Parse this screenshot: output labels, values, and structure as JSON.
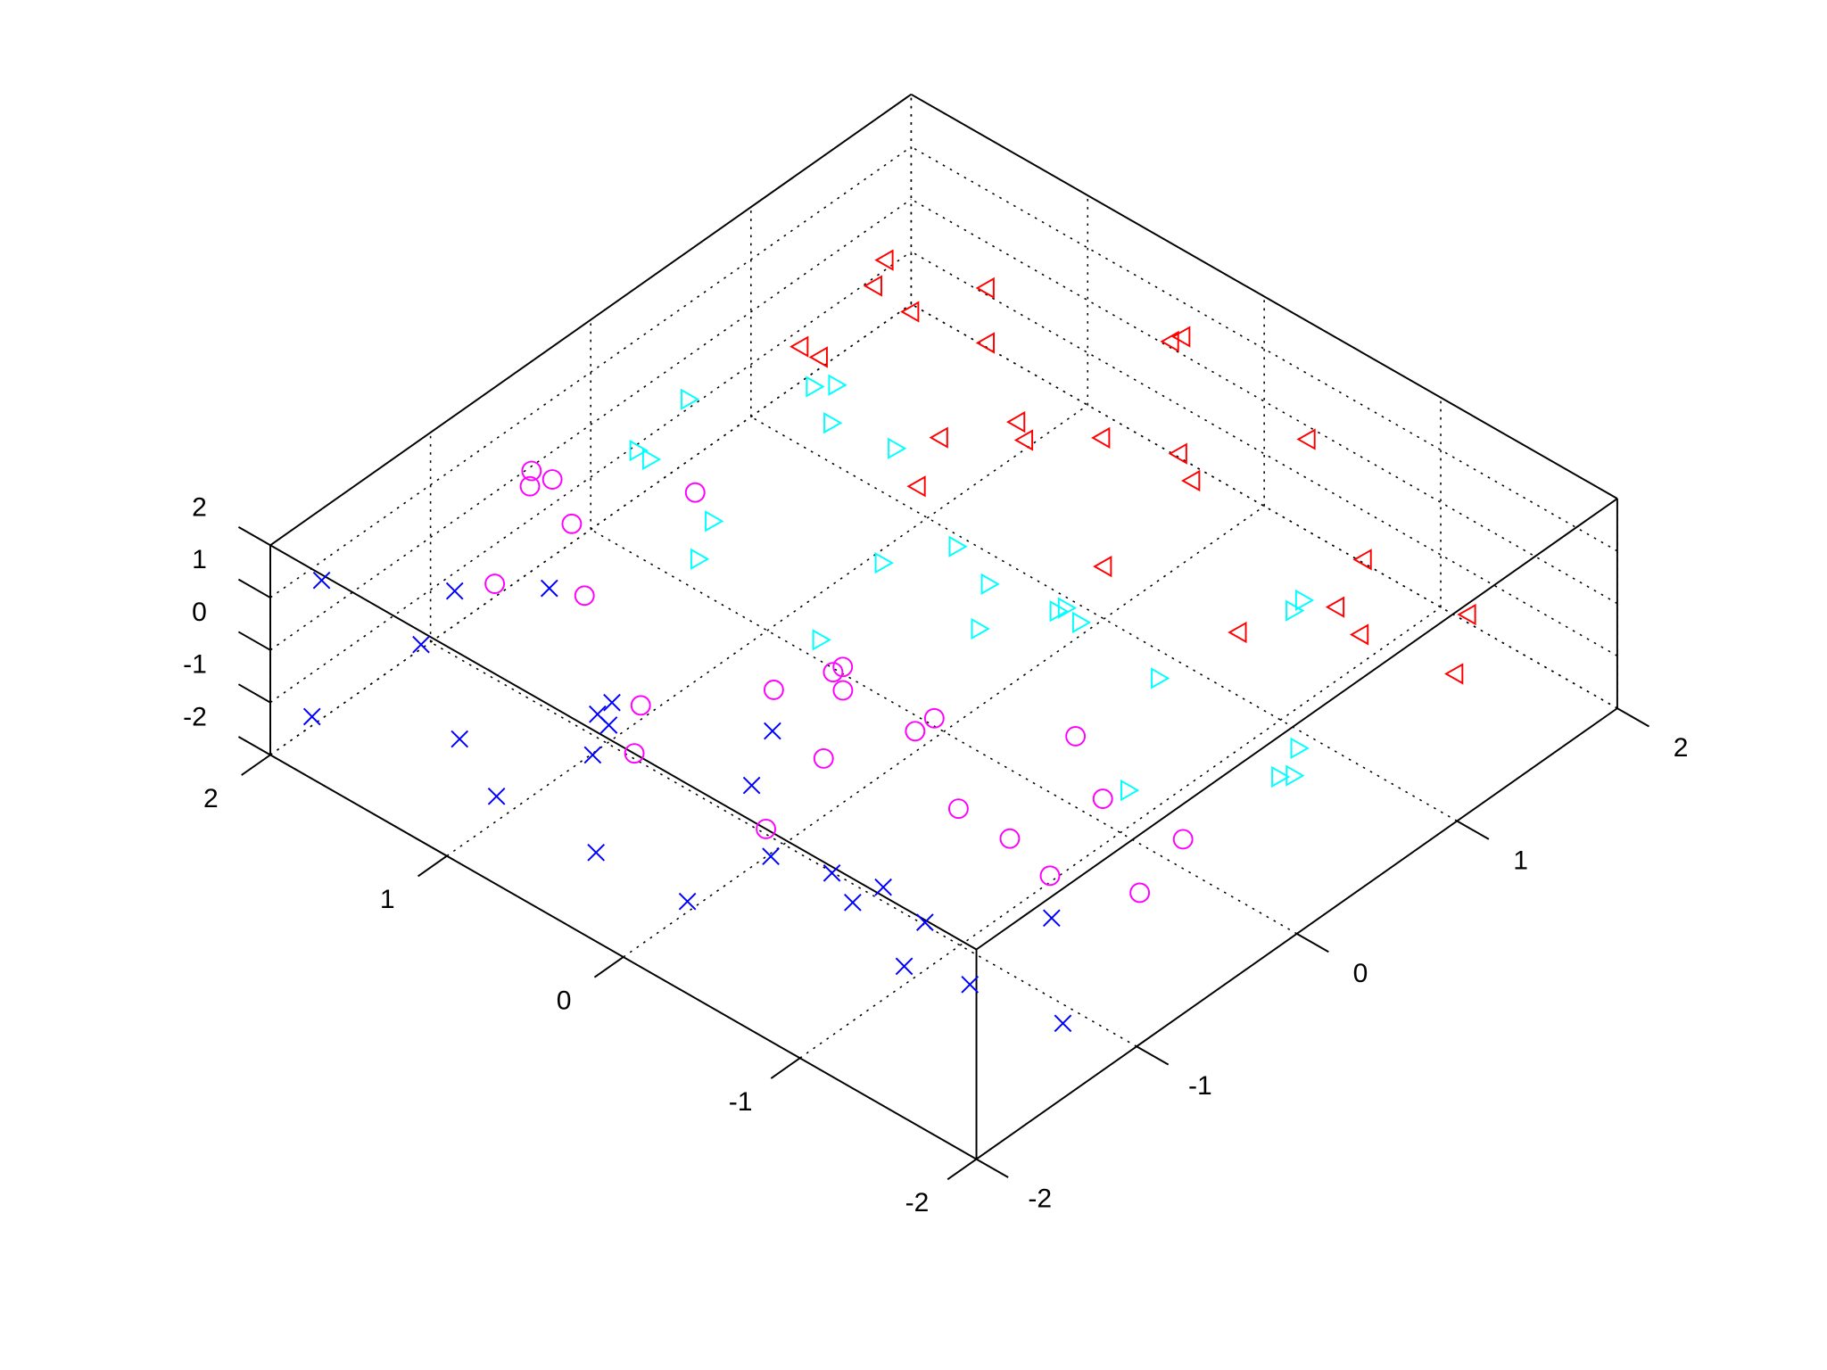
{
  "chart_data": {
    "type": "scatter3d",
    "grid": true,
    "xlim": [
      -2,
      2
    ],
    "ylim": [
      -2,
      2
    ],
    "zlim": [
      -2,
      2
    ],
    "xticks": [
      -2,
      -1,
      0,
      1,
      2
    ],
    "yticks": [
      -2,
      -1,
      0,
      1,
      2
    ],
    "zticks": [
      -2,
      -1,
      0,
      1,
      2
    ],
    "series": [
      {
        "color": "#0000ff",
        "marker": "cross",
        "x": [
          -1.9,
          -1.7,
          -1.5,
          -1.3,
          -1.8,
          -1.6,
          -1.4,
          -1.2,
          -1.95,
          -1.75,
          -1.55,
          -1.35,
          -1.85,
          -1.65,
          -1.45,
          -1.25,
          -1.9,
          -1.6,
          -1.3,
          -1.7,
          -1.5,
          -1.4,
          -1.8,
          -1.2
        ],
        "y": [
          1.8,
          1.2,
          0.6,
          -0.2,
          -1.0,
          -1.6,
          1.5,
          0.9,
          0.2,
          -0.5,
          -1.3,
          -1.9,
          1.9,
          0.4,
          -0.8,
          1.1,
          -1.5,
          0.0,
          0.7,
          -1.2,
          1.6,
          -0.3,
          0.9,
          -1.7
        ],
        "z": [
          1.5,
          -0.8,
          0.4,
          -1.2,
          1.1,
          -0.3,
          0.8,
          -1.6,
          -0.5,
          1.7,
          0.2,
          -1.0,
          -1.4,
          0.9,
          -0.6,
          1.3,
          0.5,
          -1.8,
          0.0,
          1.0,
          -0.2,
          1.6,
          -1.1,
          0.3
        ]
      },
      {
        "color": "#ff00ff",
        "marker": "circle",
        "x": [
          -1.1,
          -0.9,
          -0.7,
          -0.5,
          -0.3,
          -1.0,
          -0.8,
          -0.6,
          -0.4,
          -1.15,
          -0.95,
          -0.75,
          -0.55,
          -0.35,
          -1.05,
          -0.85,
          -0.65,
          -0.45,
          -0.25,
          -0.9,
          -0.7,
          -0.5,
          -1.0,
          -0.6
        ],
        "y": [
          -1.6,
          0.9,
          1.7,
          -0.4,
          0.3,
          1.2,
          -1.1,
          -1.9,
          0.6,
          1.5,
          -0.7,
          0.0,
          -1.4,
          1.9,
          0.8,
          -0.2,
          -1.7,
          1.0,
          0.4,
          -0.9,
          1.4,
          -1.2,
          0.1,
          1.8
        ],
        "z": [
          0.7,
          -1.3,
          1.2,
          0.1,
          -0.7,
          1.8,
          -0.2,
          0.9,
          -1.5,
          0.4,
          1.4,
          -0.9,
          0.6,
          -0.1,
          -1.7,
          1.0,
          -0.4,
          1.6,
          -1.1,
          0.2,
          -0.6,
          1.3,
          -1.9,
          0.5
        ]
      },
      {
        "color": "#00ffff",
        "marker": "triangle-right",
        "x": [
          -0.1,
          0.1,
          0.3,
          0.5,
          0.7,
          0.0,
          0.2,
          0.4,
          0.6,
          -0.15,
          0.05,
          0.25,
          0.45,
          0.65,
          -0.05,
          0.15,
          0.35,
          0.55,
          0.75,
          0.1,
          0.3,
          0.5,
          0.0,
          0.4
        ],
        "y": [
          1.3,
          -0.6,
          0.2,
          1.9,
          -1.4,
          0.7,
          -1.8,
          1.0,
          -0.1,
          1.6,
          -1.0,
          0.5,
          -1.6,
          1.2,
          -0.3,
          1.8,
          -0.9,
          0.3,
          -1.3,
          1.4,
          -0.5,
          0.8,
          -1.9,
          1.1
        ],
        "z": [
          -1.0,
          1.3,
          0.5,
          -0.4,
          1.7,
          -1.6,
          0.2,
          1.1,
          -0.8,
          0.6,
          -1.3,
          1.9,
          -0.2,
          0.9,
          1.5,
          -0.6,
          0.0,
          -1.8,
          1.2,
          -0.9,
          0.4,
          -1.4,
          0.8,
          1.6
        ]
      },
      {
        "color": "#ff0000",
        "marker": "triangle-left",
        "x": [
          0.9,
          1.1,
          1.3,
          1.5,
          1.7,
          1.0,
          1.2,
          1.4,
          1.6,
          0.85,
          1.05,
          1.25,
          1.45,
          1.65,
          0.95,
          1.15,
          1.35,
          1.55,
          1.75,
          1.1,
          1.3,
          1.5,
          1.0,
          1.4
        ],
        "y": [
          0.4,
          1.7,
          -1.2,
          0.9,
          1.3,
          -0.5,
          1.9,
          -1.7,
          0.1,
          -0.9,
          1.1,
          -0.2,
          1.5,
          0.6,
          -1.5,
          0.8,
          -1.0,
          1.8,
          0.3,
          -1.9,
          1.2,
          -0.7,
          0.0,
          1.6
        ],
        "z": [
          1.2,
          -0.5,
          0.8,
          -1.4,
          0.3,
          1.6,
          -0.9,
          0.5,
          1.9,
          -0.2,
          -1.7,
          1.0,
          0.0,
          -1.1,
          0.7,
          1.4,
          -0.6,
          -0.3,
          1.1,
          0.4,
          -1.5,
          1.7,
          -1.0,
          0.9
        ]
      }
    ]
  }
}
